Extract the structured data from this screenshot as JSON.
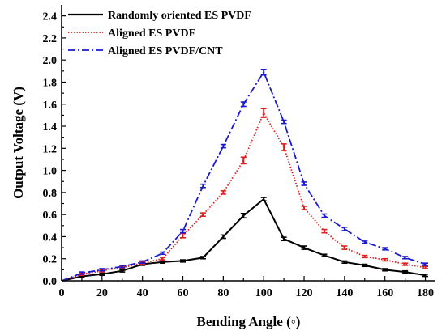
{
  "chart_data": {
    "type": "line",
    "xlabel": "Bending Angle (◦)",
    "ylabel": "Output Voltage (V)",
    "xlim": [
      0,
      185
    ],
    "ylim": [
      0,
      2.5
    ],
    "x_ticks": [
      0,
      20,
      40,
      60,
      80,
      100,
      120,
      140,
      160,
      180
    ],
    "y_ticks": [
      0.0,
      0.2,
      0.4,
      0.6,
      0.8,
      1.0,
      1.2,
      1.4,
      1.6,
      1.8,
      2.0,
      2.2,
      2.4
    ],
    "x_tick_labels": [
      "0",
      "20",
      "40",
      "60",
      "80",
      "100",
      "120",
      "140",
      "160",
      "180"
    ],
    "y_tick_labels": [
      "0.0",
      "0.2",
      "0.4",
      "0.6",
      "0.8",
      "1.0",
      "1.2",
      "1.4",
      "1.6",
      "1.8",
      "2.0",
      "2.2",
      "2.4"
    ],
    "grid": false,
    "legend_position": "top-left",
    "x": [
      0,
      10,
      20,
      30,
      40,
      50,
      60,
      70,
      80,
      90,
      100,
      110,
      120,
      130,
      140,
      150,
      160,
      170,
      180
    ],
    "series": [
      {
        "name": "Randomly oriented ES PVDF",
        "color": "#000000",
        "dash": "solid",
        "values": [
          0.0,
          0.04,
          0.06,
          0.09,
          0.15,
          0.17,
          0.18,
          0.21,
          0.4,
          0.59,
          0.74,
          0.38,
          0.3,
          0.23,
          0.17,
          0.14,
          0.1,
          0.08,
          0.05
        ],
        "errors": [
          0,
          0.01,
          0.01,
          0.01,
          0.01,
          0.01,
          0.01,
          0.01,
          0.015,
          0.02,
          0.015,
          0.015,
          0.015,
          0.01,
          0.01,
          0.01,
          0.01,
          0.01,
          0.01
        ]
      },
      {
        "name": "Aligned ES PVDF",
        "color": "#e02020",
        "dash": "dotted",
        "values": [
          0.0,
          0.06,
          0.09,
          0.12,
          0.16,
          0.2,
          0.41,
          0.6,
          0.8,
          1.09,
          1.52,
          1.21,
          0.66,
          0.45,
          0.3,
          0.22,
          0.19,
          0.15,
          0.12
        ],
        "errors": [
          0,
          0.01,
          0.01,
          0.01,
          0.01,
          0.01,
          0.02,
          0.015,
          0.015,
          0.03,
          0.04,
          0.03,
          0.015,
          0.015,
          0.015,
          0.01,
          0.01,
          0.01,
          0.01
        ]
      },
      {
        "name": "Aligned ES PVDF/CNT",
        "color": "#1a1ad0",
        "dash": "dashdot",
        "values": [
          0.0,
          0.07,
          0.1,
          0.13,
          0.17,
          0.25,
          0.45,
          0.86,
          1.22,
          1.6,
          1.89,
          1.44,
          0.88,
          0.59,
          0.47,
          0.35,
          0.29,
          0.21,
          0.15
        ],
        "errors": [
          0,
          0.01,
          0.01,
          0.01,
          0.01,
          0.01,
          0.015,
          0.015,
          0.015,
          0.02,
          0.025,
          0.015,
          0.015,
          0.015,
          0.015,
          0.01,
          0.01,
          0.01,
          0.01
        ]
      }
    ]
  }
}
